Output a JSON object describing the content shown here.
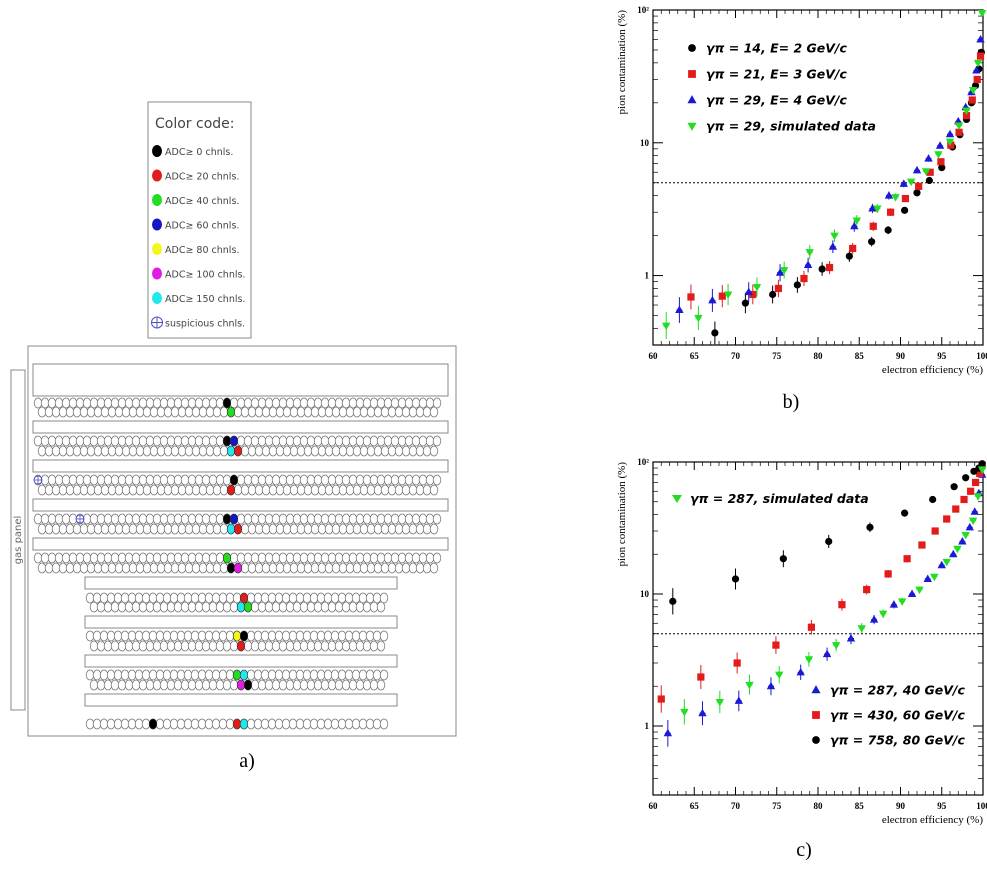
{
  "panel_a": {
    "caption": "a)",
    "legend": {
      "title": "Color code:",
      "items": [
        {
          "label": "ADC≥ 0 chnls.",
          "color": "#000000"
        },
        {
          "label": "ADC≥ 20 chnls.",
          "color": "#e21b1b"
        },
        {
          "label": "ADC≥ 40 chnls.",
          "color": "#22dd22"
        },
        {
          "label": "ADC≥ 60 chnls.",
          "color": "#1515c8"
        },
        {
          "label": "ADC≥ 80 chnls.",
          "color": "#f5f51e"
        },
        {
          "label": "ADC≥ 100 chnls.",
          "color": "#e21be2"
        },
        {
          "label": "ADC≥ 150 chnls.",
          "color": "#22e8ee"
        }
      ],
      "suspicious_label": "suspicious chnls."
    },
    "gas_panel_label": "gas panel",
    "hits": [
      {
        "row": 0,
        "idx": 27,
        "color": "#000000"
      },
      {
        "row": 1,
        "idx": 27,
        "color": "#22dd22"
      },
      {
        "row": 2,
        "idx": 27,
        "color": "#000000"
      },
      {
        "row": 2,
        "idx": 28,
        "color": "#1515c8"
      },
      {
        "row": 3,
        "idx": 27,
        "color": "#22e8ee"
      },
      {
        "row": 3,
        "idx": 28,
        "color": "#e21b1b"
      },
      {
        "row": 4,
        "idx": 0,
        "color": "suspicious"
      },
      {
        "row": 4,
        "idx": 28,
        "color": "#000000"
      },
      {
        "row": 5,
        "idx": 27,
        "color": "#e21b1b"
      },
      {
        "row": 6,
        "idx": 6,
        "color": "suspicious"
      },
      {
        "row": 6,
        "idx": 27,
        "color": "#000000"
      },
      {
        "row": 6,
        "idx": 28,
        "color": "#1515c8"
      },
      {
        "row": 7,
        "idx": 27,
        "color": "#22e8ee"
      },
      {
        "row": 7,
        "idx": 28,
        "color": "#e21b1b"
      },
      {
        "row": 8,
        "idx": 27,
        "color": "#22dd22"
      },
      {
        "row": 9,
        "idx": 27,
        "color": "#000000"
      },
      {
        "row": 9,
        "idx": 28,
        "color": "#e21be2"
      },
      {
        "row": 10,
        "idx": 22,
        "color": "#e21b1b"
      },
      {
        "row": 11,
        "idx": 21,
        "color": "#22e8ee"
      },
      {
        "row": 11,
        "idx": 22,
        "color": "#22dd22"
      },
      {
        "row": 12,
        "idx": 21,
        "color": "#f5f51e"
      },
      {
        "row": 12,
        "idx": 22,
        "color": "#000000"
      },
      {
        "row": 13,
        "idx": 21,
        "color": "#e21b1b"
      },
      {
        "row": 14,
        "idx": 21,
        "color": "#22dd22"
      },
      {
        "row": 14,
        "idx": 22,
        "color": "#22e8ee"
      },
      {
        "row": 15,
        "idx": 21,
        "color": "#e21be2"
      },
      {
        "row": 15,
        "idx": 22,
        "color": "#000000"
      },
      {
        "row": 16,
        "idx": 21,
        "color": "#e21b1b"
      },
      {
        "row": 16,
        "idx": 22,
        "color": "#22e8ee"
      },
      {
        "row": 16,
        "idx": 9,
        "color": "#000000"
      }
    ]
  },
  "chart_data": [
    {
      "type": "scatter",
      "caption": "b)",
      "xlabel": "electron efficiency (%)",
      "ylabel": "pion contamination (%)",
      "xlim": [
        60,
        100
      ],
      "ylim": [
        0.3,
        100
      ],
      "yscale": "log",
      "x_ticks": [
        "60",
        "65",
        "70",
        "75",
        "80",
        "85",
        "90",
        "95",
        "100"
      ],
      "y_ticks": [
        "1",
        "10",
        "10²"
      ],
      "threshold_line": 5,
      "legend_position": "top-left",
      "series": [
        {
          "name": "γπ = 14, E= 2 GeV/c",
          "color": "#000000",
          "marker": "circle",
          "x": [
            67.5,
            71.2,
            74.5,
            77.5,
            80.5,
            83.8,
            86.5,
            88.5,
            90.5,
            92,
            93.5,
            95,
            96.3,
            97.2,
            98,
            98.6,
            99.1,
            99.5,
            99.8
          ],
          "y": [
            0.37,
            0.62,
            0.72,
            0.85,
            1.12,
            1.4,
            1.8,
            2.2,
            3.1,
            4.2,
            5.2,
            6.5,
            9.3,
            11.5,
            15,
            20,
            27,
            36,
            48
          ]
        },
        {
          "name": "γπ = 21, E= 3 GeV/c",
          "color": "#e21b1b",
          "marker": "square",
          "x": [
            64.6,
            68.4,
            72.1,
            75.2,
            78.3,
            81.4,
            84.2,
            86.7,
            88.8,
            90.6,
            92.2,
            93.6,
            94.9,
            96.1,
            97.1,
            98,
            98.7,
            99.3,
            99.7
          ],
          "y": [
            0.69,
            0.7,
            0.72,
            0.8,
            0.95,
            1.15,
            1.6,
            2.35,
            3.0,
            3.8,
            4.7,
            6.0,
            7.2,
            9.6,
            12,
            16,
            21,
            30,
            45
          ]
        },
        {
          "name": "γπ = 29, E= 4 GeV/c",
          "color": "#1a1ad6",
          "marker": "triangle",
          "x": [
            63.2,
            67.2,
            71.6,
            75.4,
            78.8,
            81.8,
            84.4,
            86.6,
            88.6,
            90.4,
            92,
            93.4,
            94.8,
            96,
            97,
            97.9,
            98.6,
            99.2,
            99.7
          ],
          "y": [
            0.55,
            0.65,
            0.75,
            1.05,
            1.2,
            1.65,
            2.35,
            3.2,
            4.0,
            4.9,
            6.2,
            7.6,
            9.5,
            11.6,
            14.5,
            18.5,
            24,
            35,
            60
          ]
        },
        {
          "name": "γπ = 29, simulated data",
          "color": "#22dd22",
          "marker": "triangle-down",
          "x": [
            61.6,
            65.5,
            69.1,
            72.6,
            75.9,
            79,
            82,
            84.7,
            87.2,
            89.4,
            91.3,
            93.1,
            94.6,
            96,
            97.1,
            98,
            98.8,
            99.4,
            99.9
          ],
          "y": [
            0.42,
            0.48,
            0.72,
            0.82,
            1.1,
            1.5,
            2.0,
            2.6,
            3.2,
            3.9,
            5.1,
            6.1,
            8.2,
            10.2,
            13.5,
            17.5,
            25,
            40,
            95
          ]
        }
      ]
    },
    {
      "type": "scatter",
      "caption": "c)",
      "xlabel": "electron efficiency (%)",
      "ylabel": "pion contamination (%)",
      "xlim": [
        60,
        100
      ],
      "ylim": [
        0.3,
        100
      ],
      "yscale": "log",
      "x_ticks": [
        "60",
        "65",
        "70",
        "75",
        "80",
        "85",
        "90",
        "95",
        "100"
      ],
      "y_ticks": [
        "1",
        "10",
        "10²"
      ],
      "threshold_line": 5,
      "legend_top": {
        "name": "γπ = 287, simulated data",
        "color": "#22dd22",
        "marker": "triangle-down"
      },
      "series": [
        {
          "name": "γπ = 287, 40 GeV/c",
          "color": "#1a1ad6",
          "marker": "triangle",
          "x": [
            61.8,
            66,
            70.4,
            74.3,
            77.9,
            81.1,
            84,
            86.8,
            89.2,
            91.4,
            93.3,
            95,
            96.4,
            97.5,
            98.4,
            99,
            99.5,
            99.9
          ],
          "y": [
            0.88,
            1.25,
            1.55,
            2.0,
            2.55,
            3.5,
            4.6,
            6.4,
            8.3,
            10,
            13,
            16.5,
            20,
            25,
            32,
            42,
            58,
            80
          ]
        },
        {
          "name": "γπ = 430, 60 GeV/c",
          "color": "#e21b1b",
          "marker": "square",
          "x": [
            61,
            65.8,
            70.2,
            74.9,
            79.2,
            82.9,
            85.9,
            88.5,
            90.8,
            92.6,
            94.2,
            95.6,
            96.7,
            97.7,
            98.5,
            99.1,
            99.6,
            99.9
          ],
          "y": [
            1.6,
            2.35,
            3.0,
            4.1,
            5.6,
            8.3,
            10.8,
            14.2,
            18.5,
            23.5,
            30,
            37,
            44,
            52,
            60,
            70,
            82,
            95
          ]
        },
        {
          "name": "γπ = 758, 80 GeV/c",
          "color": "#000000",
          "marker": "circle",
          "x": [
            62.4,
            70,
            75.8,
            81.3,
            86.3,
            90.5,
            93.9,
            96.5,
            97.9,
            98.9,
            99.5,
            99.9
          ],
          "y": [
            8.8,
            13,
            18.5,
            25,
            32,
            41,
            52,
            65,
            76,
            85,
            90,
            97
          ]
        },
        {
          "name": "γπ = 287, simulated data",
          "color": "#22dd22",
          "marker": "triangle-down",
          "x": [
            63.8,
            68.1,
            71.7,
            75.3,
            78.9,
            82.2,
            85.3,
            87.9,
            90.2,
            92.3,
            94.1,
            95.6,
            96.9,
            97.9,
            98.8,
            99.4,
            99.9
          ],
          "y": [
            1.28,
            1.52,
            2.05,
            2.45,
            3.2,
            4.1,
            5.5,
            7.1,
            8.8,
            10.8,
            13.5,
            17.5,
            22,
            28,
            36,
            55,
            88
          ]
        }
      ]
    }
  ]
}
